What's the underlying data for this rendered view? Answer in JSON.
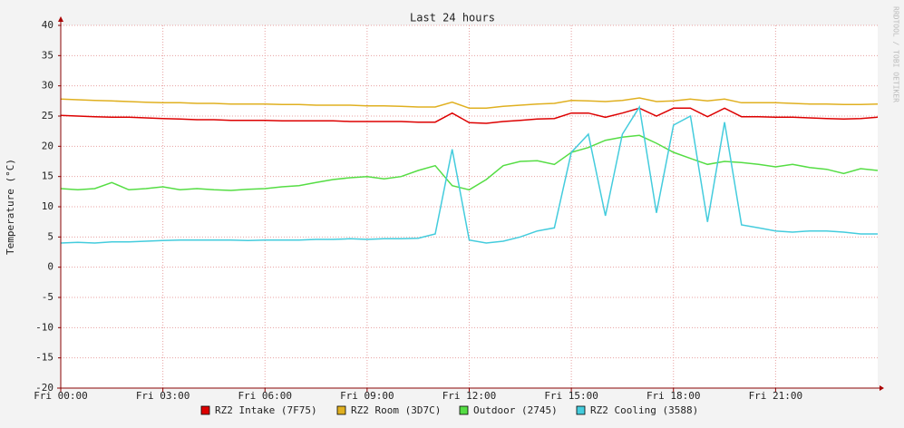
{
  "chart_data": {
    "type": "line",
    "title": "Last 24 hours",
    "y_label": "Temperature (°C)",
    "watermark": "RRDTOOL / TOBI OETIKER",
    "x": [
      0,
      0.5,
      1,
      1.5,
      2,
      2.5,
      3,
      3.5,
      4,
      4.5,
      5,
      5.5,
      6,
      6.5,
      7,
      7.5,
      8,
      8.5,
      9,
      9.5,
      10,
      10.5,
      11,
      11.5,
      12,
      12.5,
      13,
      13.5,
      14,
      14.5,
      15,
      15.5,
      16,
      16.5,
      17,
      17.5,
      18,
      18.5,
      19,
      19.5,
      20,
      20.5,
      21,
      21.5,
      22,
      22.5,
      23,
      23.5,
      24
    ],
    "xlim": [
      0,
      24
    ],
    "xticks": [
      {
        "value": 0,
        "label": "Fri 00:00"
      },
      {
        "value": 3,
        "label": "Fri 03:00"
      },
      {
        "value": 6,
        "label": "Fri 06:00"
      },
      {
        "value": 9,
        "label": "Fri 09:00"
      },
      {
        "value": 12,
        "label": "Fri 12:00"
      },
      {
        "value": 15,
        "label": "Fri 15:00"
      },
      {
        "value": 18,
        "label": "Fri 18:00"
      },
      {
        "value": 21,
        "label": "Fri 21:00"
      }
    ],
    "ylim": [
      -20,
      40
    ],
    "yticks": [
      -20,
      -15,
      -10,
      -5,
      0,
      5,
      10,
      15,
      20,
      25,
      30,
      35,
      40
    ],
    "grid": true,
    "series": [
      {
        "name": "RZ2 Intake (7F75)",
        "color": "#dd0000",
        "values": [
          25.1,
          25,
          24.9,
          24.8,
          24.8,
          24.7,
          24.6,
          24.5,
          24.4,
          24.4,
          24.3,
          24.3,
          24.3,
          24.2,
          24.2,
          24.2,
          24.2,
          24.1,
          24.1,
          24.1,
          24.1,
          24,
          24,
          25.5,
          23.9,
          23.8,
          24.1,
          24.3,
          24.5,
          24.6,
          25.5,
          25.5,
          24.8,
          25.5,
          26.3,
          25,
          26.3,
          26.3,
          24.9,
          26.3,
          24.9,
          24.9,
          24.8,
          24.8,
          24.7,
          24.6,
          24.5,
          24.6,
          24.8
        ]
      },
      {
        "name": "RZ2 Room (3D7C)",
        "color": "#e0b020",
        "values": [
          27.8,
          27.7,
          27.6,
          27.5,
          27.4,
          27.3,
          27.2,
          27.2,
          27.1,
          27.1,
          27.0,
          27.0,
          27.0,
          26.9,
          26.9,
          26.8,
          26.8,
          26.8,
          26.7,
          26.7,
          26.6,
          26.5,
          26.5,
          27.3,
          26.3,
          26.3,
          26.6,
          26.8,
          27.0,
          27.1,
          27.6,
          27.5,
          27.4,
          27.6,
          28.0,
          27.4,
          27.5,
          27.8,
          27.5,
          27.8,
          27.2,
          27.2,
          27.2,
          27.1,
          27.0,
          27.0,
          26.9,
          26.9,
          27.0
        ]
      },
      {
        "name": "Outdoor (2745)",
        "color": "#55dd44",
        "values": [
          13,
          12.8,
          13,
          14,
          12.8,
          13,
          13.3,
          12.8,
          13,
          12.8,
          12.7,
          12.9,
          13,
          13.3,
          13.5,
          14,
          14.5,
          14.8,
          15,
          14.6,
          15,
          16,
          16.8,
          13.5,
          12.8,
          14.5,
          16.8,
          17.5,
          17.6,
          17,
          19,
          19.8,
          21,
          21.5,
          21.8,
          20.5,
          19,
          18,
          17,
          17.5,
          17.3,
          17,
          16.6,
          17,
          16.5,
          16.2,
          15.5,
          16.3,
          16
        ]
      },
      {
        "name": "RZ2 Cooling (3588)",
        "color": "#44ccdd",
        "values": [
          4,
          4.1,
          4,
          4.2,
          4.2,
          4.3,
          4.4,
          4.5,
          4.5,
          4.5,
          4.5,
          4.4,
          4.5,
          4.5,
          4.5,
          4.6,
          4.6,
          4.7,
          4.6,
          4.7,
          4.7,
          4.8,
          5.5,
          19.5,
          4.5,
          4,
          4.3,
          5,
          6,
          6.5,
          19,
          22,
          8.5,
          22,
          26.5,
          9,
          23.5,
          25,
          7.5,
          24,
          7,
          6.5,
          6,
          5.8,
          6,
          6,
          5.8,
          5.5,
          5.5
        ]
      }
    ]
  }
}
